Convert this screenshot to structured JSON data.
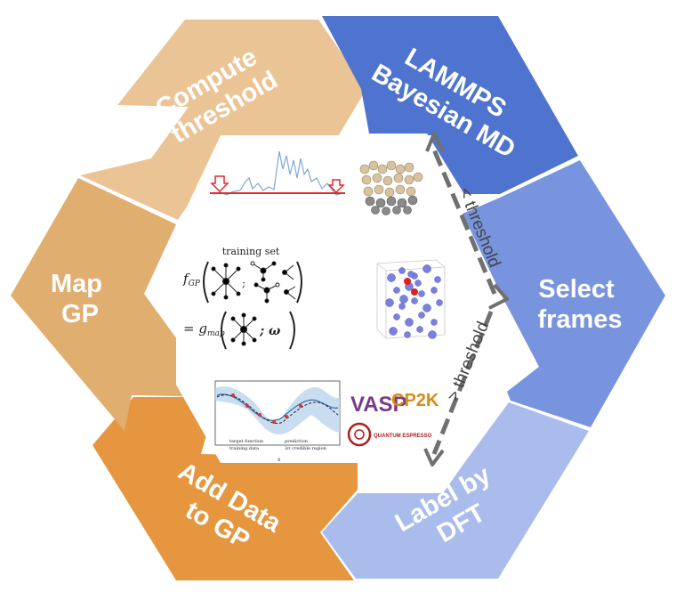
{
  "segments": [
    {
      "id": "lammps",
      "lines": [
        "LAMMPS",
        "Bayesian MD"
      ],
      "color": "#4f74cf"
    },
    {
      "id": "select",
      "lines": [
        "Select",
        "frames"
      ],
      "color": "#7894df"
    },
    {
      "id": "label",
      "lines": [
        "Label by",
        "DFT"
      ],
      "color": "#a9bcec"
    },
    {
      "id": "add",
      "lines": [
        "Add Data",
        "to GP"
      ],
      "color": "#e5963f"
    },
    {
      "id": "map",
      "lines": [
        "Map",
        "GP"
      ],
      "color": "#e0ae6f"
    },
    {
      "id": "compute",
      "lines": [
        "Compute",
        "threshold"
      ],
      "color": "#ebc496"
    }
  ],
  "thresholds": {
    "below": "< threshold",
    "above": "> threshold"
  },
  "center": {
    "training_set": "training set",
    "f_gp": "f",
    "f_gp_sub": "GP",
    "g_map": "= g",
    "g_map_sub": "map",
    "omega": "; ω",
    "legend": [
      "target function",
      "training data",
      "prediction",
      "2σ credible region"
    ],
    "xlabel": "x"
  },
  "logos": {
    "vasp": "VASP",
    "cp2k": "CP2K",
    "qe": "QUANTUM ESPRESSO"
  }
}
